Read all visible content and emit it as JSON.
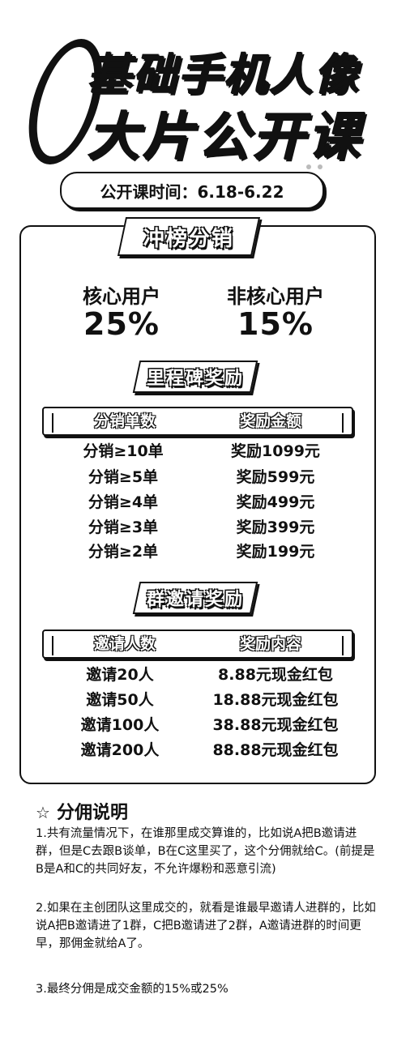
{
  "hero": {
    "zero": "0",
    "line1": "基础手机人像",
    "line2": "大片公开课"
  },
  "course_time": "公开课时间：6.18-6.22",
  "main_banner": "冲榜分销",
  "users": [
    {
      "label": "核心用户",
      "pct": "25%"
    },
    {
      "label": "非核心用户",
      "pct": "15%"
    }
  ],
  "milestone": {
    "banner": "里程碑奖励",
    "headers": [
      "分销单数",
      "奖励金额"
    ],
    "rows": [
      [
        "分销≥10单",
        "奖励1099元"
      ],
      [
        "分销≥5单",
        "奖励599元"
      ],
      [
        "分销≥4单",
        "奖励499元"
      ],
      [
        "分销≥3单",
        "奖励399元"
      ],
      [
        "分销≥2单",
        "奖励199元"
      ]
    ]
  },
  "invite": {
    "banner": "群邀请奖励",
    "headers": [
      "邀请人数",
      "奖励内容"
    ],
    "rows": [
      [
        "邀请20人",
        "8.88元现金红包"
      ],
      [
        "邀请50人",
        "18.88元现金红包"
      ],
      [
        "邀请100人",
        "38.88元现金红包"
      ],
      [
        "邀请200人",
        "88.88元现金红包"
      ]
    ]
  },
  "explanation": {
    "title": "分佣说明",
    "paragraphs": [
      "1.共有流量情况下，在谁那里成交算谁的，比如说A把B邀请进群，但是C去跟B谈单，B在C这里买了，这个分佣就给C。(前提是B是A和C的共同好友，不允许爆粉和恶意引流)",
      "2.如果在主创团队这里成交的，就看是谁最早邀请人进群的，比如说A把B邀请进了1群，C把B邀请进了2群，A邀请进群的时间更早，那佣金就给A了。",
      "3.最终分佣是成交金额的15%或25%"
    ]
  }
}
